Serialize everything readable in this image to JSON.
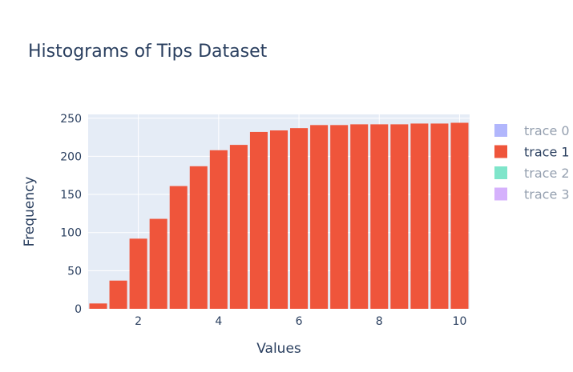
{
  "chart_data": {
    "type": "bar",
    "title": "Histograms of Tips Dataset",
    "xlabel": "Values",
    "ylabel": "Frequency",
    "xlim": [
      0.75,
      10.25
    ],
    "ylim": [
      0,
      255
    ],
    "x_ticks": [
      2,
      4,
      6,
      8,
      10
    ],
    "y_ticks": [
      0,
      50,
      100,
      150,
      200,
      250
    ],
    "grid": true,
    "legend_position": "right",
    "bin_width": 0.5,
    "series": [
      {
        "name": "trace 0",
        "color": "#636efa",
        "visible": false,
        "x": [],
        "values": []
      },
      {
        "name": "trace 1",
        "color": "#ef553b",
        "visible": true,
        "x": [
          1.0,
          1.5,
          2.0,
          2.5,
          3.0,
          3.5,
          4.0,
          4.5,
          5.0,
          5.5,
          6.0,
          6.5,
          7.0,
          7.5,
          8.0,
          8.5,
          9.0,
          9.5,
          10.0
        ],
        "values": [
          7,
          37,
          92,
          118,
          161,
          187,
          208,
          215,
          232,
          234,
          237,
          241,
          241,
          242,
          242,
          242,
          243,
          243,
          244
        ]
      },
      {
        "name": "trace 2",
        "color": "#00cc96",
        "visible": false,
        "x": [],
        "values": []
      },
      {
        "name": "trace 3",
        "color": "#ab63fa",
        "visible": false,
        "x": [],
        "values": []
      }
    ]
  }
}
